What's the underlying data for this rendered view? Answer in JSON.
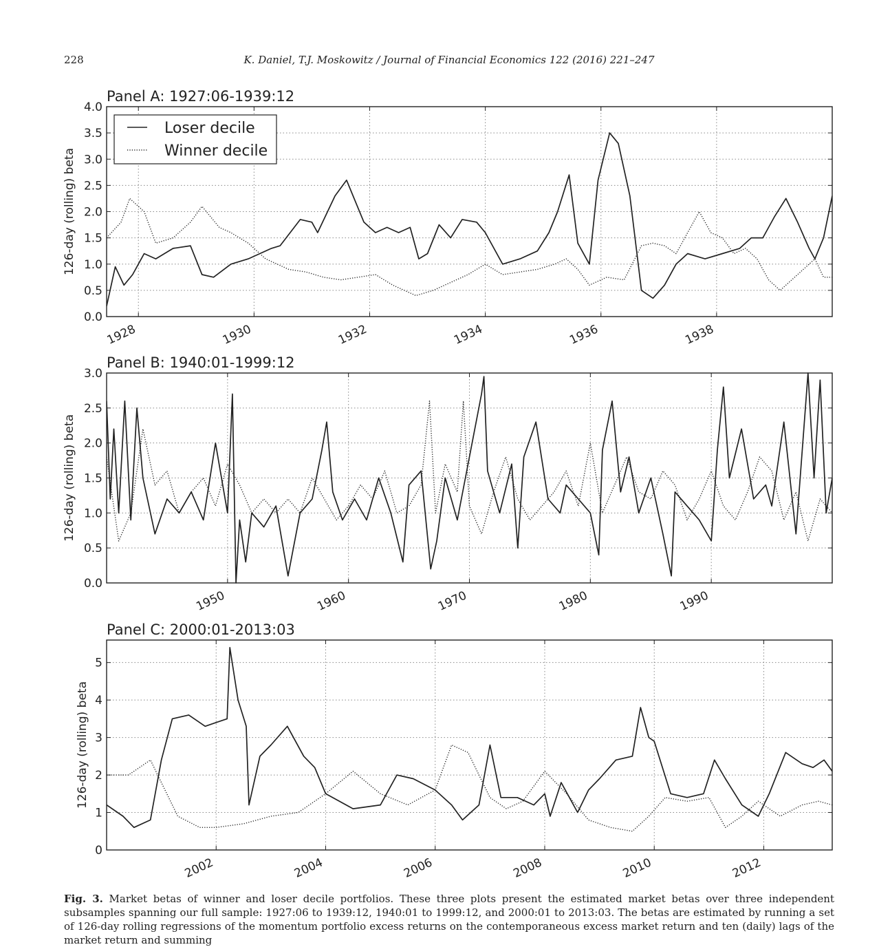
{
  "header": {
    "page_number": "228",
    "running_head": "K. Daniel, T.J. Moskowitz / Journal of Financial Economics 122 (2016) 221–247"
  },
  "chart_data": [
    {
      "type": "line",
      "title": "Panel A: 1927:06-1939:12",
      "ylabel": "126-day (rolling) beta",
      "xlim": [
        1927.45,
        1940.0
      ],
      "ylim": [
        0.0,
        4.0
      ],
      "yticks": [
        0.0,
        0.5,
        1.0,
        1.5,
        2.0,
        2.5,
        3.0,
        3.5,
        4.0
      ],
      "ytick_labels": [
        "0.0",
        "0.5",
        "1.0",
        "1.5",
        "2.0",
        "2.5",
        "3.0",
        "3.5",
        "4.0"
      ],
      "xticks": [
        1928,
        1930,
        1932,
        1934,
        1936,
        1938
      ],
      "xtick_labels": [
        "1928",
        "1930",
        "1932",
        "1934",
        "1936",
        "1938"
      ],
      "grid": true,
      "legend": {
        "position": "upper-left",
        "entries": [
          "Loser decile",
          "Winner decile"
        ]
      },
      "series": [
        {
          "name": "Loser decile",
          "style": "solid",
          "x": [
            1927.45,
            1927.6,
            1927.75,
            1927.9,
            1928.1,
            1928.3,
            1928.6,
            1928.9,
            1929.1,
            1929.3,
            1929.6,
            1929.9,
            1930.1,
            1930.3,
            1930.45,
            1930.8,
            1931.0,
            1931.1,
            1931.4,
            1931.6,
            1931.9,
            1932.1,
            1932.3,
            1932.5,
            1932.7,
            1932.85,
            1933.0,
            1933.2,
            1933.4,
            1933.6,
            1933.85,
            1934.0,
            1934.3,
            1934.6,
            1934.9,
            1935.1,
            1935.25,
            1935.45,
            1935.6,
            1935.8,
            1935.95,
            1936.15,
            1936.3,
            1936.5,
            1936.7,
            1936.9,
            1937.1,
            1937.3,
            1937.5,
            1937.8,
            1938.1,
            1938.4,
            1938.6,
            1938.8,
            1939.0,
            1939.2,
            1939.4,
            1939.6,
            1939.7,
            1939.85,
            1940.0
          ],
          "values": [
            0.2,
            0.95,
            0.6,
            0.8,
            1.2,
            1.1,
            1.3,
            1.35,
            0.8,
            0.75,
            1.0,
            1.1,
            1.2,
            1.3,
            1.35,
            1.85,
            1.8,
            1.6,
            2.3,
            2.6,
            1.8,
            1.6,
            1.7,
            1.6,
            1.7,
            1.1,
            1.2,
            1.75,
            1.5,
            1.85,
            1.8,
            1.6,
            1.0,
            1.1,
            1.25,
            1.6,
            2.0,
            2.7,
            1.4,
            1.0,
            2.6,
            3.5,
            3.3,
            2.3,
            0.5,
            0.35,
            0.6,
            1.0,
            1.2,
            1.1,
            1.2,
            1.3,
            1.5,
            1.5,
            1.9,
            2.25,
            1.8,
            1.3,
            1.1,
            1.5,
            2.3
          ]
        },
        {
          "name": "Winner decile",
          "style": "dotted",
          "x": [
            1927.45,
            1927.7,
            1927.85,
            1928.1,
            1928.3,
            1928.6,
            1928.9,
            1929.1,
            1929.4,
            1929.6,
            1929.9,
            1930.2,
            1930.4,
            1930.6,
            1930.9,
            1931.2,
            1931.5,
            1931.8,
            1932.1,
            1932.4,
            1932.6,
            1932.8,
            1933.1,
            1933.4,
            1933.7,
            1934.0,
            1934.3,
            1934.6,
            1934.9,
            1935.2,
            1935.4,
            1935.6,
            1935.8,
            1936.1,
            1936.4,
            1936.7,
            1936.9,
            1937.1,
            1937.3,
            1937.5,
            1937.7,
            1937.9,
            1938.1,
            1938.3,
            1938.5,
            1938.7,
            1938.9,
            1939.1,
            1939.3,
            1939.5,
            1939.7,
            1939.85,
            1940.0
          ],
          "values": [
            1.5,
            1.8,
            2.25,
            2.0,
            1.4,
            1.5,
            1.8,
            2.1,
            1.7,
            1.6,
            1.4,
            1.1,
            1.0,
            0.9,
            0.85,
            0.75,
            0.7,
            0.75,
            0.8,
            0.6,
            0.5,
            0.4,
            0.5,
            0.65,
            0.8,
            1.0,
            0.8,
            0.85,
            0.9,
            1.0,
            1.1,
            0.9,
            0.6,
            0.75,
            0.7,
            1.35,
            1.4,
            1.35,
            1.2,
            1.6,
            2.0,
            1.6,
            1.5,
            1.2,
            1.3,
            1.1,
            0.7,
            0.5,
            0.7,
            0.9,
            1.1,
            0.75,
            0.75
          ]
        }
      ]
    },
    {
      "type": "line",
      "title": "Panel B: 1940:01-1999:12",
      "ylabel": "126-day (rolling) beta",
      "xlim": [
        1940.0,
        2000.0
      ],
      "ylim": [
        0.0,
        3.0
      ],
      "yticks": [
        0.0,
        0.5,
        1.0,
        1.5,
        2.0,
        2.5,
        3.0
      ],
      "ytick_labels": [
        "0.0",
        "0.5",
        "1.0",
        "1.5",
        "2.0",
        "2.5",
        "3.0"
      ],
      "xticks": [
        1950,
        1960,
        1970,
        1980,
        1990
      ],
      "xtick_labels": [
        "1950",
        "1960",
        "1970",
        "1980",
        "1990"
      ],
      "grid": true,
      "series": [
        {
          "name": "Loser decile",
          "style": "solid",
          "x": [
            1940.0,
            1940.3,
            1940.6,
            1941.0,
            1941.5,
            1942.0,
            1942.5,
            1943.0,
            1944.0,
            1945.0,
            1946.0,
            1947.0,
            1948.0,
            1949.0,
            1950.0,
            1950.4,
            1950.7,
            1951.0,
            1951.5,
            1952.0,
            1953.0,
            1954.0,
            1955.0,
            1956.0,
            1957.0,
            1957.8,
            1958.2,
            1958.7,
            1959.5,
            1960.5,
            1961.5,
            1962.5,
            1963.5,
            1964.5,
            1965.0,
            1966.0,
            1966.8,
            1967.3,
            1968.0,
            1969.0,
            1970.0,
            1971.0,
            1971.2,
            1971.5,
            1972.5,
            1973.5,
            1974.0,
            1974.5,
            1975.5,
            1976.5,
            1977.5,
            1978.0,
            1979.0,
            1980.0,
            1980.7,
            1981.0,
            1981.8,
            1982.5,
            1983.2,
            1984.0,
            1985.0,
            1986.0,
            1986.7,
            1987.0,
            1988.0,
            1989.0,
            1990.0,
            1990.5,
            1991.0,
            1991.5,
            1992.5,
            1993.5,
            1994.5,
            1995.0,
            1996.0,
            1997.0,
            1998.0,
            1998.5,
            1999.0,
            1999.5,
            2000.0
          ],
          "values": [
            2.6,
            1.2,
            2.2,
            1.0,
            2.6,
            0.9,
            2.5,
            1.5,
            0.7,
            1.2,
            1.0,
            1.3,
            0.9,
            2.0,
            1.0,
            2.7,
            0.0,
            0.9,
            0.3,
            1.0,
            0.8,
            1.1,
            0.1,
            1.0,
            1.2,
            1.9,
            2.3,
            1.3,
            0.9,
            1.2,
            0.9,
            1.5,
            1.0,
            0.3,
            1.4,
            1.6,
            0.2,
            0.6,
            1.5,
            0.9,
            1.8,
            2.7,
            2.95,
            1.6,
            1.0,
            1.7,
            0.5,
            1.8,
            2.3,
            1.2,
            1.0,
            1.4,
            1.2,
            1.0,
            0.4,
            1.9,
            2.6,
            1.3,
            1.8,
            1.0,
            1.5,
            0.7,
            0.1,
            1.3,
            1.1,
            0.9,
            0.6,
            1.9,
            2.8,
            1.5,
            2.2,
            1.2,
            1.4,
            1.1,
            2.3,
            0.7,
            3.0,
            1.5,
            2.9,
            1.0,
            1.5
          ]
        },
        {
          "name": "Winner decile",
          "style": "dotted",
          "x": [
            1940.0,
            1941.0,
            1942.0,
            1943.0,
            1944.0,
            1945.0,
            1946.0,
            1947.0,
            1948.0,
            1949.0,
            1950.0,
            1951.0,
            1952.0,
            1953.0,
            1954.0,
            1955.0,
            1956.0,
            1957.0,
            1958.0,
            1959.0,
            1960.0,
            1961.0,
            1962.0,
            1963.0,
            1964.0,
            1965.0,
            1966.0,
            1966.7,
            1967.2,
            1968.0,
            1969.0,
            1969.5,
            1970.0,
            1971.0,
            1972.0,
            1973.0,
            1974.0,
            1975.0,
            1976.0,
            1977.0,
            1978.0,
            1979.0,
            1980.0,
            1981.0,
            1982.0,
            1983.0,
            1984.0,
            1985.0,
            1986.0,
            1987.0,
            1988.0,
            1989.0,
            1990.0,
            1991.0,
            1992.0,
            1993.0,
            1994.0,
            1995.0,
            1996.0,
            1997.0,
            1998.0,
            1999.0,
            2000.0
          ],
          "values": [
            1.8,
            0.6,
            1.0,
            2.2,
            1.4,
            1.6,
            1.0,
            1.3,
            1.5,
            1.1,
            1.7,
            1.4,
            1.0,
            1.2,
            1.0,
            1.2,
            1.0,
            1.5,
            1.2,
            0.9,
            1.1,
            1.4,
            1.2,
            1.6,
            1.0,
            1.1,
            1.4,
            2.6,
            1.0,
            1.7,
            1.3,
            2.6,
            1.1,
            0.7,
            1.3,
            1.8,
            1.2,
            0.9,
            1.1,
            1.3,
            1.6,
            1.1,
            2.0,
            1.0,
            1.4,
            1.8,
            1.3,
            1.2,
            1.6,
            1.4,
            0.9,
            1.2,
            1.6,
            1.1,
            0.9,
            1.3,
            1.8,
            1.6,
            0.9,
            1.3,
            0.6,
            1.2,
            1.0
          ]
        }
      ]
    },
    {
      "type": "line",
      "title": "Panel C: 2000:01-2013:03",
      "ylabel": "126-day (rolling) beta",
      "xlim": [
        2000.0,
        2013.25
      ],
      "ylim": [
        0,
        5.6
      ],
      "yticks": [
        0,
        1,
        2,
        3,
        4,
        5
      ],
      "ytick_labels": [
        "0",
        "1",
        "2",
        "3",
        "4",
        "5"
      ],
      "xticks": [
        2002,
        2004,
        2006,
        2008,
        2010,
        2012
      ],
      "xtick_labels": [
        "2002",
        "2004",
        "2006",
        "2008",
        "2010",
        "2012"
      ],
      "grid": true,
      "series": [
        {
          "name": "Loser decile",
          "style": "solid",
          "x": [
            2000.0,
            2000.3,
            2000.5,
            2000.8,
            2001.0,
            2001.2,
            2001.5,
            2001.8,
            2002.0,
            2002.2,
            2002.25,
            2002.4,
            2002.55,
            2002.6,
            2002.8,
            2003.0,
            2003.3,
            2003.6,
            2003.8,
            2004.0,
            2004.5,
            2005.0,
            2005.3,
            2005.6,
            2006.0,
            2006.3,
            2006.5,
            2006.8,
            2007.0,
            2007.2,
            2007.5,
            2007.8,
            2008.0,
            2008.1,
            2008.3,
            2008.6,
            2008.8,
            2009.0,
            2009.3,
            2009.6,
            2009.75,
            2009.9,
            2010.0,
            2010.3,
            2010.6,
            2010.9,
            2011.1,
            2011.3,
            2011.6,
            2011.9,
            2012.1,
            2012.4,
            2012.7,
            2012.9,
            2013.1,
            2013.25
          ],
          "values": [
            1.2,
            0.9,
            0.6,
            0.8,
            2.4,
            3.5,
            3.6,
            3.3,
            3.4,
            3.5,
            5.4,
            4.0,
            3.3,
            1.2,
            2.5,
            2.8,
            3.3,
            2.5,
            2.2,
            1.5,
            1.1,
            1.2,
            2.0,
            1.9,
            1.6,
            1.2,
            0.8,
            1.2,
            2.8,
            1.4,
            1.4,
            1.2,
            1.5,
            0.9,
            1.8,
            1.0,
            1.6,
            1.9,
            2.4,
            2.5,
            3.8,
            3.0,
            2.9,
            1.5,
            1.4,
            1.5,
            2.4,
            1.9,
            1.2,
            0.9,
            1.5,
            2.6,
            2.3,
            2.2,
            2.4,
            2.1
          ]
        },
        {
          "name": "Winner decile",
          "style": "dotted",
          "x": [
            2000.0,
            2000.4,
            2000.8,
            2001.0,
            2001.3,
            2001.7,
            2002.0,
            2002.5,
            2003.0,
            2003.5,
            2004.0,
            2004.5,
            2005.0,
            2005.5,
            2006.0,
            2006.3,
            2006.6,
            2007.0,
            2007.3,
            2007.6,
            2008.0,
            2008.4,
            2008.8,
            2009.2,
            2009.6,
            2009.9,
            2010.2,
            2010.6,
            2011.0,
            2011.3,
            2011.6,
            2011.9,
            2012.3,
            2012.7,
            2013.0,
            2013.25
          ],
          "values": [
            2.0,
            2.0,
            2.4,
            1.8,
            0.9,
            0.6,
            0.6,
            0.7,
            0.9,
            1.0,
            1.5,
            2.1,
            1.5,
            1.2,
            1.6,
            2.8,
            2.6,
            1.4,
            1.1,
            1.3,
            2.1,
            1.5,
            0.8,
            0.6,
            0.5,
            0.9,
            1.4,
            1.3,
            1.4,
            0.6,
            0.9,
            1.3,
            0.9,
            1.2,
            1.3,
            1.2
          ]
        }
      ]
    }
  ],
  "caption": {
    "label": "Fig. 3.",
    "text": " Market betas of winner and loser decile portfolios. These three plots present the estimated market betas over three independent subsamples spanning our full sample: 1927:06 to 1939:12, 1940:01 to 1999:12, and 2000:01 to 2013:03. The betas are estimated by running a set of 126-day rolling regressions of the momentum portfolio excess returns on the contemporaneous excess market return and ten (daily) lags of the market return and summing"
  }
}
